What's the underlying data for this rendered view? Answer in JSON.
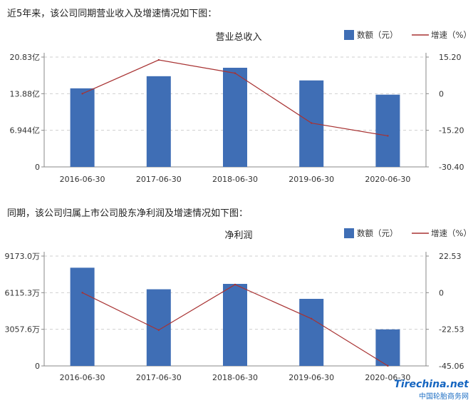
{
  "intro1": "近5年来，该公司同期营业收入及增速情况如下图：",
  "intro2": "同期，该公司归属上市公司股东净利润及增速情况如下图：",
  "watermark": {
    "logo": "Tirechina.net",
    "text": "中国轮胎商务网"
  },
  "colors": {
    "bar": "#3f6eb5",
    "line": "#a83232"
  },
  "chart_data": [
    {
      "type": "bar",
      "title": "营业总收入",
      "legend": {
        "bar": "数额（元）",
        "line": "增速（%）"
      },
      "categories": [
        "2016-06-30",
        "2017-06-30",
        "2018-06-30",
        "2019-06-30",
        "2020-06-30"
      ],
      "series": [
        {
          "name": "数额（元）",
          "kind": "bar",
          "axis": "left",
          "values": [
            14.9,
            17.2,
            18.8,
            16.4,
            13.7
          ]
        },
        {
          "name": "增速（%）",
          "kind": "line",
          "axis": "right",
          "values": [
            0.0,
            14.0,
            8.5,
            -12.2,
            -17.5
          ]
        }
      ],
      "y_left": {
        "min": 0,
        "max": 20.83,
        "ticks": [
          0,
          6.944,
          13.88,
          20.83
        ],
        "tick_labels": [
          "0",
          "6.944亿",
          "13.88亿",
          "20.83亿"
        ]
      },
      "y_right": {
        "min": -30.4,
        "max": 15.2,
        "ticks": [
          -30.4,
          -15.2,
          0,
          15.2
        ],
        "tick_labels": [
          "-30.40",
          "-15.20",
          "0",
          "15.20"
        ]
      }
    },
    {
      "type": "bar",
      "title": "净利润",
      "legend": {
        "bar": "数额（元）",
        "line": "增速（%）"
      },
      "categories": [
        "2016-06-30",
        "2017-06-30",
        "2018-06-30",
        "2019-06-30",
        "2020-06-30"
      ],
      "series": [
        {
          "name": "数额（元）",
          "kind": "bar",
          "axis": "left",
          "values": [
            8200,
            6400,
            6850,
            5600,
            3050
          ]
        },
        {
          "name": "增速（%）",
          "kind": "line",
          "axis": "right",
          "values": [
            0.0,
            -23.0,
            5.0,
            -16.0,
            -45.0
          ]
        }
      ],
      "y_left": {
        "min": 0,
        "max": 9173.0,
        "ticks": [
          0,
          3057.6,
          6115.3,
          9173.0
        ],
        "tick_labels": [
          "0",
          "3057.6万",
          "6115.3万",
          "9173.0万"
        ]
      },
      "y_right": {
        "min": -45.06,
        "max": 22.53,
        "ticks": [
          -45.06,
          -22.53,
          0,
          22.53
        ],
        "tick_labels": [
          "-45.06",
          "-22.53",
          "0",
          "22.53"
        ]
      }
    }
  ]
}
